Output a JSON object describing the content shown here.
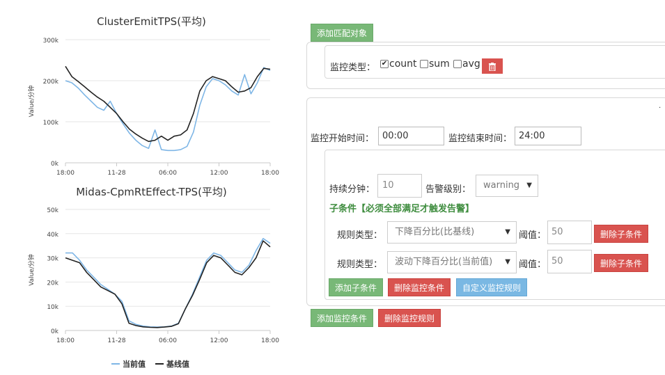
{
  "charts": [
    {
      "title": "ClusterEmitTPS(平均)",
      "ylabel": "Value/分钟",
      "yticks": [
        "0k",
        "100k",
        "200k",
        "300k"
      ],
      "xticks": [
        "18:00",
        "11-28",
        "06:00",
        "12:00",
        "18:00"
      ]
    },
    {
      "title": "Midas-CpmRtEffect-TPS(平均)",
      "ylabel": "Value/分钟",
      "yticks": [
        "0k",
        "10k",
        "20k",
        "30k",
        "40k",
        "50k"
      ],
      "xticks": [
        "18:00",
        "11-28",
        "06:00",
        "12:00",
        "18:00"
      ]
    }
  ],
  "legend": {
    "current": "当前值",
    "baseline": "基线值"
  },
  "colors": {
    "current": "#7eb6e6",
    "baseline": "#222222",
    "grid": "#e6e6e6"
  },
  "chart_data": [
    {
      "type": "line",
      "title": "ClusterEmitTPS(平均)",
      "ylabel": "Value/分钟",
      "ylim": [
        0,
        300000
      ],
      "xticks": [
        "18:00",
        "11-28",
        "06:00",
        "12:00",
        "18:00"
      ],
      "series": [
        {
          "name": "当前值",
          "values": [
            200000,
            195000,
            182000,
            165000,
            150000,
            135000,
            128000,
            150000,
            120000,
            95000,
            72000,
            55000,
            42000,
            35000,
            80000,
            32000,
            30000,
            30000,
            32000,
            40000,
            75000,
            140000,
            185000,
            205000,
            200000,
            190000,
            175000,
            165000,
            215000,
            168000,
            195000,
            232000,
            225000
          ]
        },
        {
          "name": "基线值",
          "values": [
            235000,
            210000,
            198000,
            185000,
            172000,
            160000,
            150000,
            135000,
            120000,
            100000,
            82000,
            70000,
            60000,
            52000,
            55000,
            65000,
            55000,
            65000,
            68000,
            80000,
            120000,
            175000,
            200000,
            210000,
            205000,
            200000,
            185000,
            172000,
            175000,
            183000,
            210000,
            230000,
            228000
          ]
        }
      ]
    },
    {
      "type": "line",
      "title": "Midas-CpmRtEffect-TPS(平均)",
      "ylabel": "Value/分钟",
      "ylim": [
        0,
        50000
      ],
      "xticks": [
        "18:00",
        "11-28",
        "06:00",
        "12:00",
        "18:00"
      ],
      "series": [
        {
          "name": "当前值",
          "values": [
            32000,
            32000,
            29000,
            25000,
            22000,
            19000,
            17000,
            15000,
            12000,
            4000,
            2500,
            1800,
            1500,
            1400,
            1500,
            1800,
            3000,
            9000,
            15000,
            22000,
            29000,
            32000,
            31000,
            28000,
            25000,
            24000,
            27000,
            33000,
            38000,
            36000
          ]
        },
        {
          "name": "基线值",
          "values": [
            30000,
            29000,
            28000,
            24000,
            21000,
            18000,
            16500,
            15000,
            11000,
            3000,
            2000,
            1500,
            1300,
            1200,
            1400,
            1700,
            2800,
            9000,
            14500,
            21000,
            28000,
            31000,
            30000,
            27000,
            24000,
            23000,
            26000,
            30000,
            37000,
            34500
          ]
        }
      ]
    }
  ],
  "form": {
    "add_match_object": "添加匹配对象",
    "monitor_type_label": "监控类型：",
    "checkbox_count": "count",
    "checkbox_sum": "sum",
    "checkbox_avg": "avg",
    "count_checked": true,
    "start_time_label": "监控开始时间：",
    "start_time_value": "00:00",
    "end_time_label": "监控结束时间：",
    "end_time_value": "24:00",
    "duration_label": "持续分钟：",
    "duration_value": "10",
    "alarm_level_label": "告警级别：",
    "alarm_level_value": "warning",
    "sub_condition_note": "子条件【必须全部满足才触发告警】",
    "rules": [
      {
        "type_label": "规则类型：",
        "type_value": "下降百分比(比基线)",
        "threshold_label": "阈值：",
        "threshold_value": "50",
        "delete_label": "删除子条件"
      },
      {
        "type_label": "规则类型：",
        "type_value": "波动下降百分比(当前值)",
        "threshold_label": "阈值：",
        "threshold_value": "50",
        "delete_label": "删除子条件"
      }
    ],
    "add_sub_condition": "添加子条件",
    "delete_monitor_condition": "删除监控条件",
    "custom_monitor_rule": "自定义监控规则",
    "add_monitor_condition": "添加监控条件",
    "delete_monitor_rule": "删除监控规则"
  }
}
